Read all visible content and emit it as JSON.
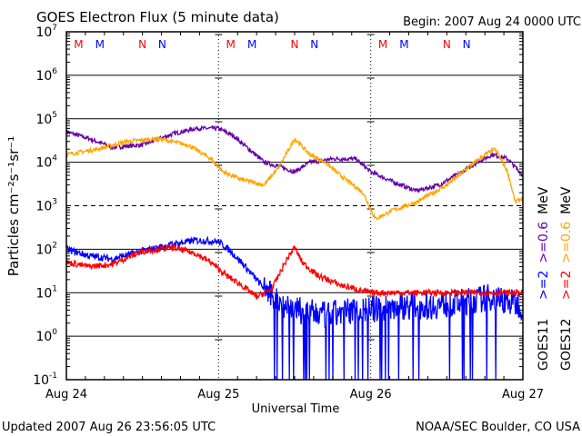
{
  "chart_data": {
    "type": "line",
    "title": "GOES Electron Flux (5 minute data)",
    "begin": "Begin: 2007 Aug 24 0000 UTC",
    "xlabel": "Universal Time",
    "ylabel": "Particles cm⁻²s⁻¹sr⁻¹",
    "yscale": "log",
    "ylim_exp": [
      -1,
      7
    ],
    "ytick_exps": [
      7,
      6,
      5,
      4,
      3,
      2,
      1,
      0,
      -1
    ],
    "xlim_days": [
      0,
      3
    ],
    "xticks": [
      {
        "day": 0,
        "label": "Aug 24"
      },
      {
        "day": 1,
        "label": "Aug 25"
      },
      {
        "day": 2,
        "label": "Aug 26"
      },
      {
        "day": 3,
        "label": "Aug 27"
      }
    ],
    "dashed_level_exp": 3,
    "markers": [
      {
        "label": "M",
        "color": "#ff0000",
        "offset": 0.08
      },
      {
        "label": "M",
        "color": "#0000ff",
        "offset": 0.22
      },
      {
        "label": "N",
        "color": "#ff0000",
        "offset": 0.5
      },
      {
        "label": "N",
        "color": "#0000ff",
        "offset": 0.63
      }
    ],
    "legend": {
      "left_column": [
        {
          "text": ">=2",
          "color": "#0000ff"
        },
        {
          "text": ">=0.6",
          "color": "#6600aa"
        },
        {
          "text": "MeV",
          "color": "#000000"
        }
      ],
      "right_column": [
        {
          "text": ">=2",
          "color": "#ff0000"
        },
        {
          "text": ">=0.6",
          "color": "#ffa500"
        },
        {
          "text": "MeV",
          "color": "#000000"
        }
      ],
      "sat_left": "GOES11",
      "sat_right": "GOES12"
    },
    "series": [
      {
        "name": "GOES11 >=0.6 MeV",
        "color": "#6600aa",
        "noise": 0.05,
        "dropouts": false,
        "x": [
          0,
          0.15,
          0.3,
          0.5,
          0.7,
          0.85,
          1.0,
          1.1,
          1.2,
          1.3,
          1.4,
          1.5,
          1.6,
          1.75,
          1.9,
          2.0,
          2.15,
          2.3,
          2.45,
          2.6,
          2.7,
          2.8,
          2.9,
          3.0
        ],
        "y": [
          50000.0,
          35000.0,
          22000.0,
          25000.0,
          45000.0,
          60000.0,
          60000.0,
          40000.0,
          20000.0,
          10000.0,
          8000.0,
          6000.0,
          10000.0,
          12000.0,
          12000.0,
          6000.0,
          3500.0,
          2200.0,
          3000.0,
          6000.0,
          10000.0,
          15000.0,
          12000.0,
          5000.0
        ]
      },
      {
        "name": "GOES12 >=0.6 MeV",
        "color": "#ffa500",
        "noise": 0.05,
        "dropouts": false,
        "x": [
          0,
          0.2,
          0.4,
          0.6,
          0.8,
          0.95,
          1.03,
          1.15,
          1.3,
          1.4,
          1.5,
          1.6,
          1.7,
          1.8,
          1.95,
          2.03,
          2.15,
          2.3,
          2.5,
          2.65,
          2.75,
          2.82,
          2.9,
          2.95,
          3.0
        ],
        "y": [
          15000.0,
          20000.0,
          30000.0,
          35000.0,
          25000.0,
          12000.0,
          6000.0,
          4000.0,
          3000.0,
          8000.0,
          35000.0,
          15000.0,
          10000.0,
          5000.0,
          2000.0,
          500.0,
          800.0,
          1200.0,
          3000.0,
          8000.0,
          15000.0,
          20000.0,
          6000.0,
          1200.0,
          1500.0
        ]
      },
      {
        "name": "GOES11 >=2 MeV",
        "color": "#0000ff",
        "noise": 0.08,
        "dropouts": true,
        "x": [
          0,
          0.15,
          0.3,
          0.5,
          0.7,
          0.85,
          1.0,
          1.08,
          1.15,
          1.25,
          1.35,
          1.5,
          1.7,
          1.9,
          2.0,
          2.2,
          2.4,
          2.6,
          2.8,
          3.0
        ],
        "y": [
          100,
          70,
          60,
          90,
          130,
          160,
          150,
          90,
          50,
          20,
          8,
          4,
          3,
          4,
          4,
          5,
          5,
          6,
          8,
          5
        ]
      },
      {
        "name": "GOES12 >=2 MeV",
        "color": "#ff0000",
        "noise": 0.07,
        "dropouts": false,
        "x": [
          0,
          0.15,
          0.3,
          0.5,
          0.7,
          0.85,
          0.95,
          1.05,
          1.15,
          1.25,
          1.35,
          1.45,
          1.5,
          1.55,
          1.65,
          1.8,
          2.0,
          2.5,
          3.0
        ],
        "y": [
          50,
          40,
          45,
          90,
          110,
          80,
          50,
          25,
          15,
          8,
          12,
          60,
          110,
          50,
          25,
          15,
          10,
          10,
          10
        ]
      }
    ]
  },
  "footer": {
    "updated": "Updated 2007 Aug 26 23:56:05 UTC",
    "source": "NOAA/SEC Boulder, CO USA"
  }
}
